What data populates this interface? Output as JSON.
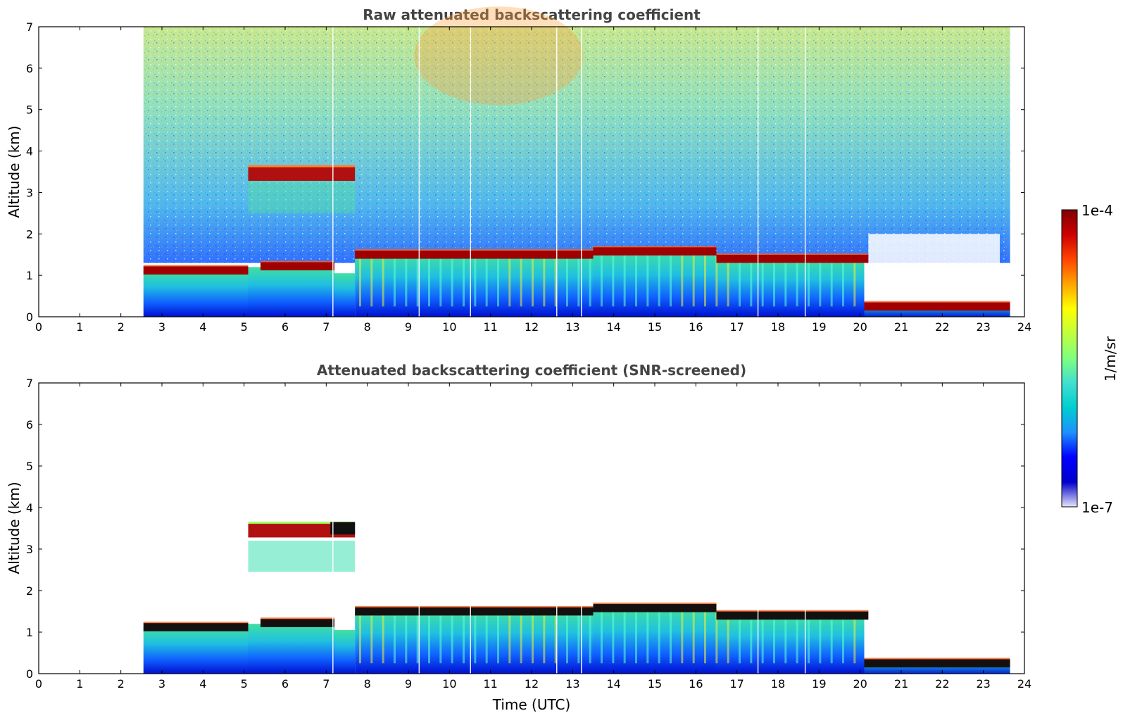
{
  "chart_data": [
    {
      "type": "heatmap",
      "title": "Raw attenuated backscattering coefficient",
      "xlabel": "",
      "ylabel": "Altitude (km)",
      "xlim": [
        0,
        24
      ],
      "ylim": [
        0,
        7
      ],
      "xticks": [
        0,
        1,
        2,
        3,
        4,
        5,
        6,
        7,
        8,
        9,
        10,
        11,
        12,
        13,
        14,
        15,
        16,
        17,
        18,
        19,
        20,
        21,
        22,
        23,
        24
      ],
      "yticks": [
        0,
        1,
        2,
        3,
        4,
        5,
        6,
        7
      ],
      "data_time_range_utc": [
        2.55,
        23.65
      ],
      "features": [
        {
          "feature": "boundary-layer cloud top",
          "time": [
            2.55,
            5.1
          ],
          "altitude_km": 1.12
        },
        {
          "feature": "boundary-layer cloud top",
          "time": [
            5.4,
            7.2
          ],
          "altitude_km": 1.22
        },
        {
          "feature": "elevated cloud layer",
          "time": [
            5.1,
            7.7
          ],
          "altitude_km": 3.45
        },
        {
          "feature": "cloud top",
          "time": [
            7.7,
            13.5
          ],
          "altitude_km": 1.5
        },
        {
          "feature": "cloud top",
          "time": [
            13.5,
            16.5
          ],
          "altitude_km": 1.58
        },
        {
          "feature": "cloud top",
          "time": [
            16.5,
            20.2
          ],
          "altitude_km": 1.4
        },
        {
          "feature": "low cloud layer",
          "time": [
            20.1,
            23.65
          ],
          "altitude_km": 0.25
        }
      ]
    },
    {
      "type": "heatmap",
      "title": "Attenuated backscattering coefficient (SNR-screened)",
      "xlabel": "Time (UTC)",
      "ylabel": "Altitude (km)",
      "xlim": [
        0,
        24
      ],
      "ylim": [
        0,
        7
      ],
      "xticks": [
        0,
        1,
        2,
        3,
        4,
        5,
        6,
        7,
        8,
        9,
        10,
        11,
        12,
        13,
        14,
        15,
        16,
        17,
        18,
        19,
        20,
        21,
        22,
        23,
        24
      ],
      "yticks": [
        0,
        1,
        2,
        3,
        4,
        5,
        6,
        7
      ],
      "data_time_range_utc": [
        2.55,
        23.65
      ]
    }
  ],
  "colorbar": {
    "label": "1/m/sr",
    "min_label": "1e-7",
    "max_label": "1e-4",
    "scale": "log",
    "colormap": [
      "#e6e6fa",
      "#0000cd",
      "#0000ff",
      "#1e90ff",
      "#00ced1",
      "#40e0d0",
      "#7fff7f",
      "#c0ff3e",
      "#ffff00",
      "#ffa500",
      "#ff4500",
      "#cc0000",
      "#800000"
    ]
  }
}
